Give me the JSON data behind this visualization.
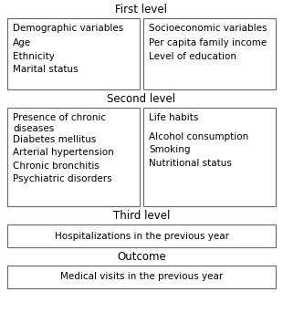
{
  "bg_color": "#ffffff",
  "text_color": "#000000",
  "box_edge_color": "#666666",
  "title_fontsize": 8.5,
  "body_fontsize": 7.5,
  "level1_label": "First level",
  "level2_label": "Second level",
  "level3_label": "Third level",
  "outcome_label": "Outcome",
  "box1_title": "Demographic variables",
  "box1_items": "Age\nEthnicity\nMarital status",
  "box2_title": "Socioeconomic variables",
  "box2_items": "Per capita family income\nLevel of education",
  "box3_title": "Presence of chronic\ndiseases",
  "box3_items": "Diabetes mellitus\nArterial hypertension\nChronic bronchitis\nPsychiatric disorders",
  "box4_title": "Life habits",
  "box4_items": "Alcohol consumption\nSmoking\nNutritional status",
  "box5_text": "Hospitalizations in the previous year",
  "box6_text": "Medical visits in the previous year"
}
